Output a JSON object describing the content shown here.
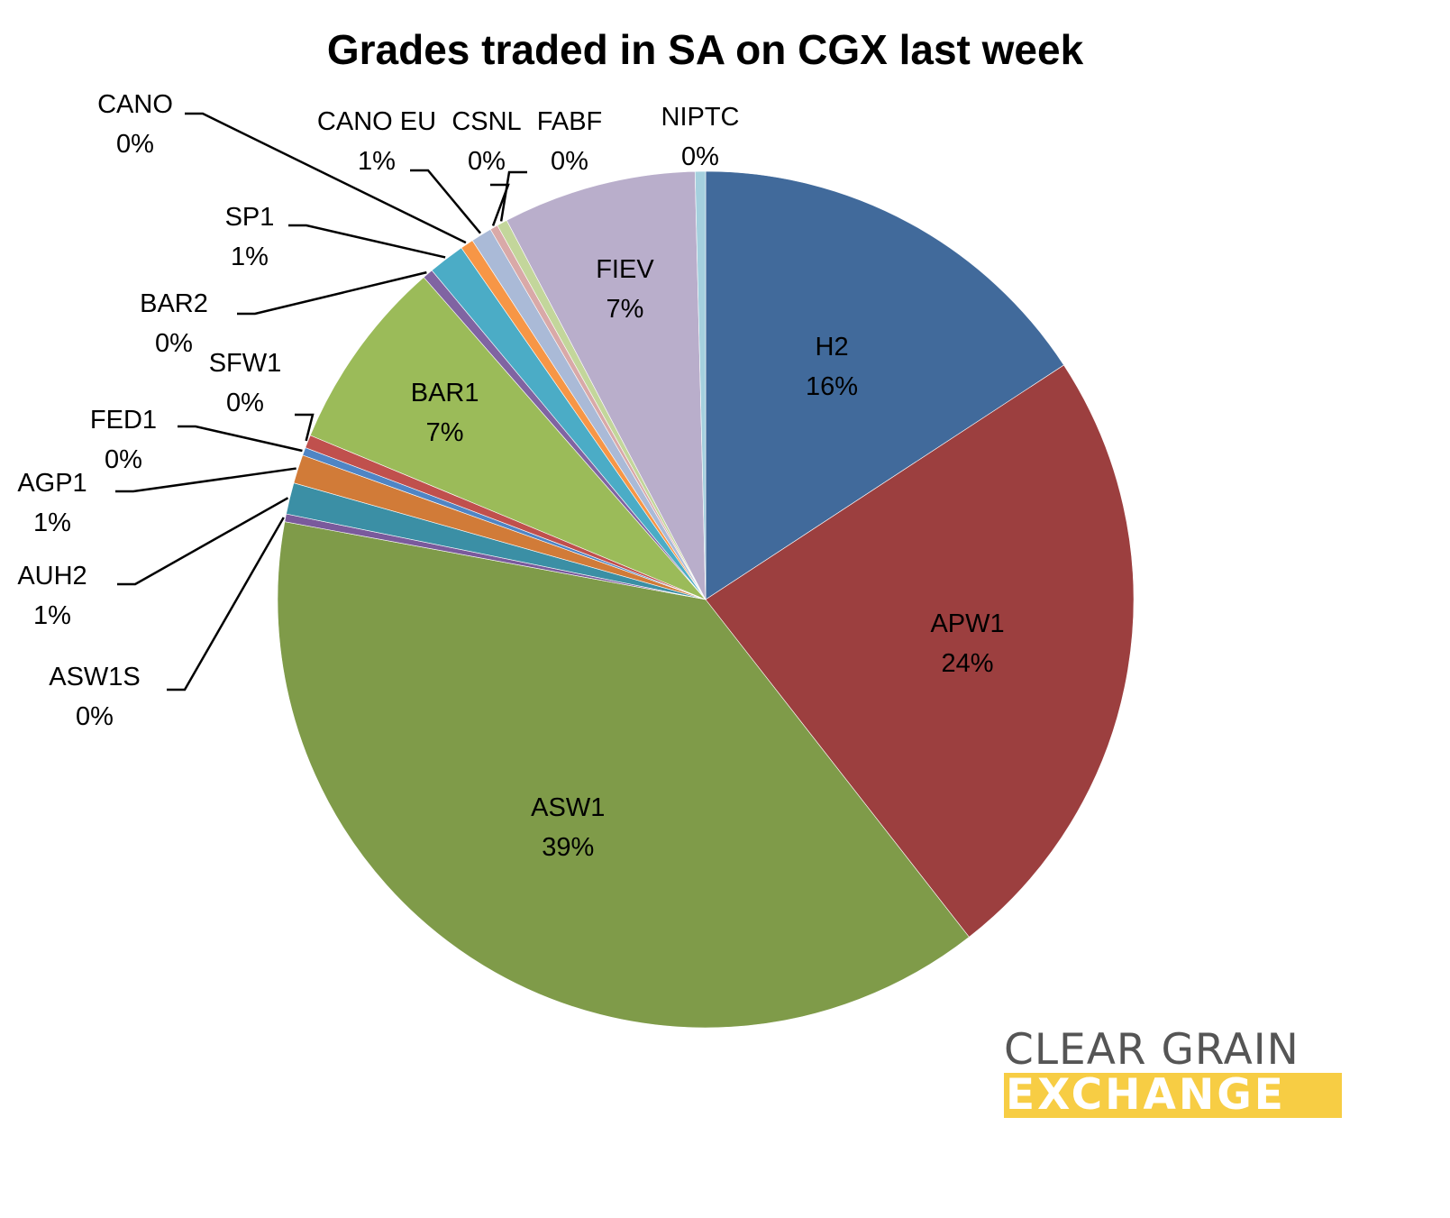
{
  "chart_data": {
    "type": "pie",
    "title": "Grades traded in SA on CGX last week",
    "start_angle_deg": 0,
    "direction": "clockwise",
    "slices": [
      {
        "label": "H2",
        "pct_label": "16%",
        "value": 16.0,
        "color": "#416a9b"
      },
      {
        "label": "APW1",
        "pct_label": "24%",
        "value": 24.0,
        "color": "#9c3f3f"
      },
      {
        "label": "ASW1",
        "pct_label": "39%",
        "value": 39.0,
        "color": "#7f9b49"
      },
      {
        "label": "ASW1S",
        "pct_label": "0%",
        "value": 0.3,
        "color": "#7a5a9c"
      },
      {
        "label": "AUH2",
        "pct_label": "1%",
        "value": 1.2,
        "color": "#3b8fa5"
      },
      {
        "label": "AGP1",
        "pct_label": "1%",
        "value": 1.1,
        "color": "#d17b38"
      },
      {
        "label": "FED1",
        "pct_label": "0%",
        "value": 0.3,
        "color": "#4f85c5"
      },
      {
        "label": "SFW1",
        "pct_label": "0%",
        "value": 0.5,
        "color": "#c0504d"
      },
      {
        "label": "BAR1",
        "pct_label": "7%",
        "value": 7.4,
        "color": "#9bbb59"
      },
      {
        "label": "BAR2",
        "pct_label": "0%",
        "value": 0.4,
        "color": "#8064a2"
      },
      {
        "label": "SP1",
        "pct_label": "1%",
        "value": 1.4,
        "color": "#4bacc6"
      },
      {
        "label": "CANO",
        "pct_label": "0%",
        "value": 0.5,
        "color": "#f79646"
      },
      {
        "label": "CANO EU",
        "pct_label": "1%",
        "value": 0.8,
        "color": "#aabad7"
      },
      {
        "label": "CSNL",
        "pct_label": "0%",
        "value": 0.3,
        "color": "#d9a9a8"
      },
      {
        "label": "FABF",
        "pct_label": "0%",
        "value": 0.4,
        "color": "#c3d69b"
      },
      {
        "label": "FIEV",
        "pct_label": "7%",
        "value": 7.4,
        "color": "#b9aecb"
      },
      {
        "label": "NIPTC",
        "pct_label": "0%",
        "value": 0.4,
        "color": "#a5d0de"
      }
    ],
    "inside_labels": [
      "H2",
      "APW1",
      "ASW1",
      "BAR1",
      "FIEV"
    ],
    "legend": "none (data labels with leader lines)"
  },
  "logo": {
    "line1": "CLEAR GRAIN",
    "line2": "EXCHANGE"
  },
  "colors": {
    "logo_gray": "#555555",
    "logo_yellow": "#f7cd44"
  }
}
